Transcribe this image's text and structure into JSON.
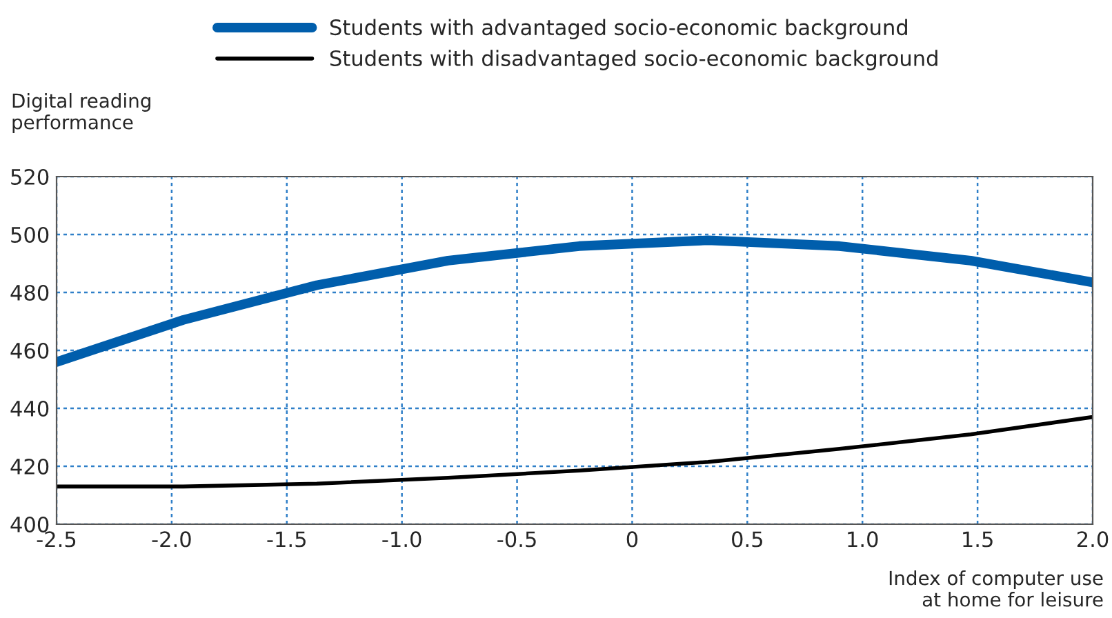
{
  "chart_data": {
    "type": "line",
    "ylabel": "Digital reading\nperformance",
    "xlabel": "Index of computer use\nat home for leisure",
    "x": [
      -2.5,
      -1.95,
      -1.37,
      -0.8,
      -0.23,
      0.33,
      0.9,
      1.47,
      2.0
    ],
    "series": [
      {
        "name": "Students with advantaged socio-economic background",
        "color": "#005eac",
        "values": [
          456,
          470.5,
          482.5,
          491,
          496,
          498,
          496,
          491,
          483.5
        ]
      },
      {
        "name": "Students with disadvantaged socio-economic background",
        "color": "#000000",
        "values": [
          413,
          413,
          414,
          416,
          418.5,
          421.5,
          426,
          431,
          437
        ]
      }
    ],
    "xlim": [
      -2.5,
      2.0
    ],
    "xticks": [
      {
        "value": -2.5,
        "label": "-2.5"
      },
      {
        "value": -2.0,
        "label": "-2.0"
      },
      {
        "value": -1.5,
        "label": "-1.5"
      },
      {
        "value": -1.0,
        "label": "-1.0"
      },
      {
        "value": -0.5,
        "label": "-0.5"
      },
      0,
      0.5,
      {
        "value": 1.0,
        "label": "1.0"
      },
      1.5,
      {
        "value": 2.0,
        "label": "2.0"
      }
    ],
    "ylim": [
      400,
      520
    ],
    "yticks": [
      400,
      420,
      440,
      460,
      480,
      500,
      520
    ],
    "grid": true,
    "legend": "top",
    "marker": "none",
    "line_style": "solid"
  }
}
